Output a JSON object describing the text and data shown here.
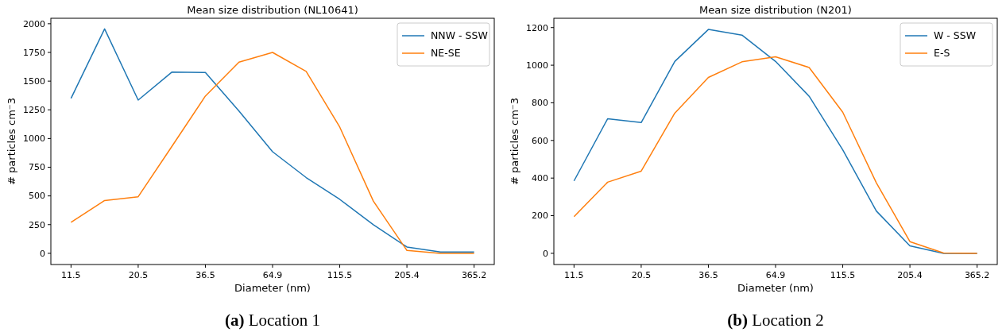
{
  "chart_data": [
    {
      "type": "line",
      "title": "Mean size distribution (NL10641)",
      "xlabel": "Diameter (nm)",
      "ylabel": "# particles cm⁻3",
      "categories": [
        "11.5",
        null,
        "20.5",
        null,
        "36.5",
        null,
        "64.9",
        null,
        "115.5",
        null,
        "205.4",
        null,
        "365.2"
      ],
      "series": [
        {
          "name": "NNW - SSW",
          "color": "#1f77b4",
          "values": [
            1350,
            1955,
            1335,
            1578,
            1575,
            1240,
            885,
            660,
            470,
            250,
            55,
            12,
            12
          ]
        },
        {
          "name": "NE-SE",
          "color": "#ff7f0e",
          "values": [
            270,
            460,
            493,
            930,
            1370,
            1665,
            1750,
            1585,
            1100,
            455,
            25,
            0,
            0
          ]
        }
      ],
      "ylim": [
        -97.5,
        2047.5
      ],
      "yticks": [
        0,
        250,
        500,
        750,
        1000,
        1250,
        1500,
        1750,
        2000
      ],
      "grid": false,
      "legend": "top right",
      "annotations": [
        "(a) Location 1"
      ]
    },
    {
      "type": "line",
      "title": "Mean size distribution (N201)",
      "xlabel": "Diameter (nm)",
      "ylabel": "# particles cm⁻3",
      "categories": [
        "11.5",
        null,
        "20.5",
        null,
        "36.5",
        null,
        "64.9",
        null,
        "115.5",
        null,
        "205.4",
        null,
        "365.2"
      ],
      "series": [
        {
          "name": "W - SSW",
          "color": "#1f77b4",
          "values": [
            385,
            715,
            695,
            1020,
            1190,
            1160,
            1020,
            835,
            550,
            225,
            40,
            0,
            0
          ]
        },
        {
          "name": "E-S",
          "color": "#ff7f0e",
          "values": [
            195,
            378,
            437,
            745,
            935,
            1018,
            1045,
            988,
            750,
            375,
            62,
            2,
            0
          ]
        }
      ],
      "ylim": [
        -59.5,
        1249.5
      ],
      "yticks": [
        0,
        200,
        400,
        600,
        800,
        1000,
        1200
      ],
      "grid": false,
      "legend": "top right",
      "annotations": [
        "(b) Location 2"
      ]
    }
  ]
}
